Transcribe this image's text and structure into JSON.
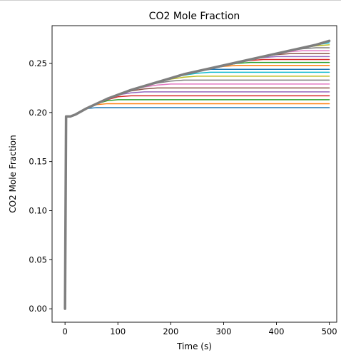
{
  "chart_data": {
    "type": "line",
    "title": "CO2 Mole Fraction",
    "xlabel": "Time (s)",
    "ylabel": "CO2 Mole Fraction",
    "xlim": [
      -24.5,
      514
    ],
    "ylim": [
      -0.0137,
      0.2885
    ],
    "xticks": [
      0,
      100,
      200,
      300,
      400,
      500
    ],
    "yticks": [
      0.0,
      0.05,
      0.1,
      0.15,
      0.2,
      0.25
    ],
    "xtick_labels": [
      "0",
      "100",
      "200",
      "300",
      "400",
      "500"
    ],
    "ytick_labels": [
      "0.00",
      "0.05",
      "0.10",
      "0.15",
      "0.20",
      "0.25"
    ],
    "grid": false,
    "legend": false,
    "x": [
      0,
      2,
      10,
      20,
      30,
      40,
      60,
      80,
      100,
      125,
      150,
      175,
      200,
      225,
      250,
      275,
      300,
      325,
      350,
      375,
      400,
      425,
      450,
      475,
      500
    ],
    "series": [
      {
        "color": "#1f77b4",
        "values": [
          0.0,
          0.196,
          0.196,
          0.198,
          0.201,
          0.204,
          0.205,
          0.205,
          0.205,
          0.205,
          0.205,
          0.205,
          0.205,
          0.205,
          0.205,
          0.205,
          0.205,
          0.205,
          0.205,
          0.205,
          0.205,
          0.205,
          0.205,
          0.205,
          0.205
        ]
      },
      {
        "color": "#ff7f0e",
        "values": [
          0.0,
          0.196,
          0.196,
          0.198,
          0.201,
          0.204,
          0.208,
          0.209,
          0.209,
          0.209,
          0.209,
          0.209,
          0.209,
          0.209,
          0.209,
          0.209,
          0.209,
          0.209,
          0.209,
          0.209,
          0.209,
          0.209,
          0.209,
          0.209,
          0.209
        ]
      },
      {
        "color": "#2ca02c",
        "values": [
          0.0,
          0.196,
          0.196,
          0.198,
          0.201,
          0.204,
          0.209,
          0.212,
          0.213,
          0.213,
          0.213,
          0.213,
          0.213,
          0.213,
          0.213,
          0.213,
          0.213,
          0.213,
          0.213,
          0.213,
          0.213,
          0.213,
          0.213,
          0.213,
          0.213
        ]
      },
      {
        "color": "#d62728",
        "values": [
          0.0,
          0.196,
          0.196,
          0.198,
          0.201,
          0.204,
          0.209,
          0.213,
          0.216,
          0.217,
          0.217,
          0.217,
          0.217,
          0.217,
          0.217,
          0.217,
          0.217,
          0.217,
          0.217,
          0.217,
          0.217,
          0.217,
          0.217,
          0.217,
          0.217
        ]
      },
      {
        "color": "#9467bd",
        "values": [
          0.0,
          0.196,
          0.196,
          0.198,
          0.201,
          0.204,
          0.209,
          0.214,
          0.218,
          0.22,
          0.221,
          0.221,
          0.221,
          0.221,
          0.221,
          0.221,
          0.221,
          0.221,
          0.221,
          0.221,
          0.221,
          0.221,
          0.221,
          0.221,
          0.221
        ]
      },
      {
        "color": "#8c564b",
        "values": [
          0.0,
          0.196,
          0.196,
          0.198,
          0.201,
          0.204,
          0.209,
          0.214,
          0.218,
          0.222,
          0.224,
          0.225,
          0.225,
          0.225,
          0.225,
          0.225,
          0.225,
          0.225,
          0.225,
          0.225,
          0.225,
          0.225,
          0.225,
          0.225,
          0.225
        ]
      },
      {
        "color": "#e377c2",
        "values": [
          0.0,
          0.196,
          0.196,
          0.198,
          0.201,
          0.204,
          0.209,
          0.214,
          0.218,
          0.223,
          0.226,
          0.228,
          0.229,
          0.229,
          0.229,
          0.229,
          0.229,
          0.229,
          0.229,
          0.229,
          0.229,
          0.229,
          0.229,
          0.229,
          0.229
        ]
      },
      {
        "color": "#7f7f7f",
        "values": [
          0.0,
          0.196,
          0.196,
          0.198,
          0.201,
          0.204,
          0.209,
          0.214,
          0.218,
          0.223,
          0.227,
          0.23,
          0.232,
          0.233,
          0.233,
          0.233,
          0.233,
          0.233,
          0.233,
          0.233,
          0.233,
          0.233,
          0.233,
          0.233,
          0.233
        ]
      },
      {
        "color": "#bcbd22",
        "values": [
          0.0,
          0.196,
          0.196,
          0.198,
          0.201,
          0.204,
          0.209,
          0.214,
          0.218,
          0.223,
          0.227,
          0.231,
          0.234,
          0.236,
          0.237,
          0.237,
          0.237,
          0.237,
          0.237,
          0.237,
          0.237,
          0.237,
          0.237,
          0.237,
          0.237
        ]
      },
      {
        "color": "#17becf",
        "values": [
          0.0,
          0.196,
          0.196,
          0.198,
          0.201,
          0.204,
          0.209,
          0.214,
          0.218,
          0.223,
          0.227,
          0.231,
          0.235,
          0.238,
          0.24,
          0.241,
          0.241,
          0.241,
          0.241,
          0.241,
          0.241,
          0.241,
          0.241,
          0.241,
          0.241
        ]
      },
      {
        "color": "#1f77b4",
        "values": [
          0.0,
          0.196,
          0.196,
          0.198,
          0.201,
          0.204,
          0.209,
          0.214,
          0.218,
          0.223,
          0.227,
          0.231,
          0.235,
          0.239,
          0.242,
          0.244,
          0.244,
          0.244,
          0.244,
          0.244,
          0.244,
          0.244,
          0.244,
          0.244,
          0.244
        ]
      },
      {
        "color": "#ff7f0e",
        "values": [
          0.0,
          0.196,
          0.196,
          0.198,
          0.201,
          0.204,
          0.209,
          0.214,
          0.218,
          0.223,
          0.227,
          0.231,
          0.235,
          0.239,
          0.242,
          0.245,
          0.247,
          0.248,
          0.248,
          0.248,
          0.248,
          0.248,
          0.248,
          0.248,
          0.248
        ]
      },
      {
        "color": "#2ca02c",
        "values": [
          0.0,
          0.196,
          0.196,
          0.198,
          0.201,
          0.204,
          0.209,
          0.214,
          0.218,
          0.223,
          0.227,
          0.231,
          0.235,
          0.239,
          0.242,
          0.245,
          0.248,
          0.25,
          0.251,
          0.251,
          0.251,
          0.251,
          0.251,
          0.251,
          0.251
        ]
      },
      {
        "color": "#d62728",
        "values": [
          0.0,
          0.196,
          0.196,
          0.198,
          0.201,
          0.204,
          0.209,
          0.214,
          0.218,
          0.223,
          0.227,
          0.231,
          0.235,
          0.239,
          0.242,
          0.245,
          0.248,
          0.251,
          0.253,
          0.254,
          0.254,
          0.254,
          0.254,
          0.254,
          0.254
        ]
      },
      {
        "color": "#9467bd",
        "values": [
          0.0,
          0.196,
          0.196,
          0.198,
          0.201,
          0.204,
          0.209,
          0.214,
          0.218,
          0.223,
          0.227,
          0.231,
          0.235,
          0.239,
          0.242,
          0.245,
          0.248,
          0.251,
          0.254,
          0.256,
          0.257,
          0.257,
          0.257,
          0.257,
          0.257
        ]
      },
      {
        "color": "#8c564b",
        "values": [
          0.0,
          0.196,
          0.196,
          0.198,
          0.201,
          0.204,
          0.209,
          0.214,
          0.218,
          0.223,
          0.227,
          0.231,
          0.235,
          0.239,
          0.242,
          0.245,
          0.248,
          0.251,
          0.254,
          0.257,
          0.259,
          0.26,
          0.26,
          0.26,
          0.26
        ]
      },
      {
        "color": "#e377c2",
        "values": [
          0.0,
          0.196,
          0.196,
          0.198,
          0.201,
          0.204,
          0.209,
          0.214,
          0.218,
          0.223,
          0.227,
          0.231,
          0.235,
          0.239,
          0.242,
          0.245,
          0.248,
          0.251,
          0.254,
          0.257,
          0.26,
          0.262,
          0.263,
          0.263,
          0.263
        ]
      },
      {
        "color": "#7f7f7f",
        "values": [
          0.0,
          0.196,
          0.196,
          0.198,
          0.201,
          0.204,
          0.209,
          0.214,
          0.218,
          0.223,
          0.227,
          0.231,
          0.235,
          0.239,
          0.242,
          0.245,
          0.248,
          0.251,
          0.254,
          0.257,
          0.26,
          0.263,
          0.265,
          0.266,
          0.266
        ]
      },
      {
        "color": "#bcbd22",
        "values": [
          0.0,
          0.196,
          0.196,
          0.198,
          0.201,
          0.204,
          0.209,
          0.214,
          0.218,
          0.223,
          0.227,
          0.231,
          0.235,
          0.239,
          0.242,
          0.245,
          0.248,
          0.251,
          0.254,
          0.257,
          0.26,
          0.263,
          0.266,
          0.268,
          0.269
        ]
      },
      {
        "color": "#17becf",
        "values": [
          0.0,
          0.196,
          0.196,
          0.198,
          0.201,
          0.204,
          0.209,
          0.214,
          0.218,
          0.223,
          0.227,
          0.231,
          0.235,
          0.239,
          0.242,
          0.245,
          0.248,
          0.251,
          0.254,
          0.257,
          0.26,
          0.263,
          0.266,
          0.269,
          0.271
        ]
      },
      {
        "color": "#7f7f7f",
        "values": [
          0.0,
          0.196,
          0.196,
          0.198,
          0.201,
          0.204,
          0.209,
          0.214,
          0.218,
          0.223,
          0.227,
          0.231,
          0.235,
          0.239,
          0.242,
          0.245,
          0.248,
          0.251,
          0.254,
          0.257,
          0.26,
          0.263,
          0.266,
          0.269,
          0.273
        ]
      }
    ]
  }
}
